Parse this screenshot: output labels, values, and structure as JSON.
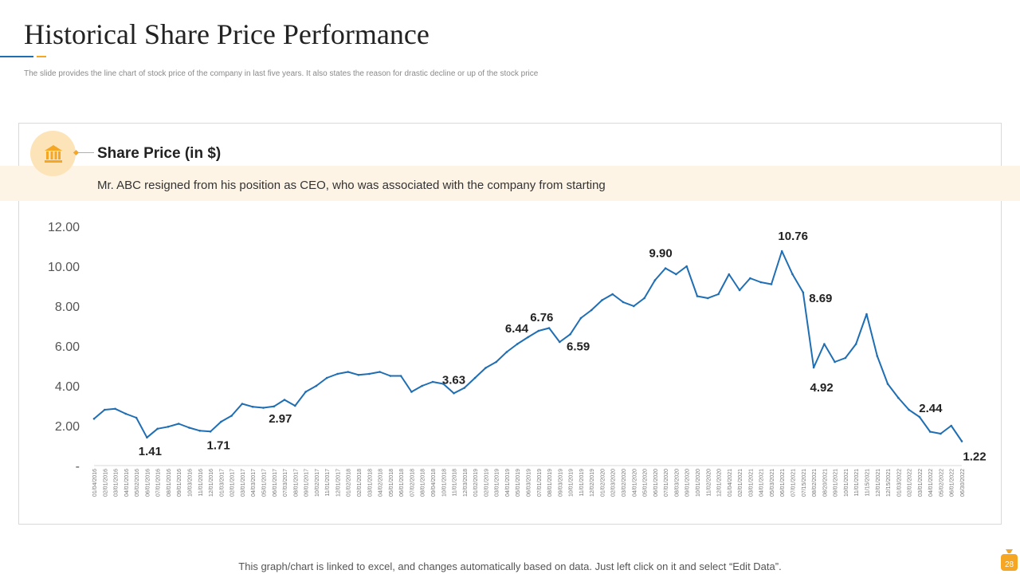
{
  "slide": {
    "title": "Historical Share Price Performance",
    "subtitle": "The slide provides the line chart of stock price of the company in last five years. It also states the reason for drastic decline or up of the stock price",
    "footer": "This graph/chart is linked to excel, and changes automatically based on data. Just left click on it and select “Edit Data”.",
    "page_number": "28",
    "accent_blue": "#1f6eb3",
    "accent_gold": "#f5a623"
  },
  "card": {
    "heading": "Share Price (in $)",
    "note": "Mr. ABC resigned from his position as CEO, who was associated with the company from starting",
    "icon": "bank-icon"
  },
  "chart_data": {
    "type": "line",
    "title": "",
    "xlabel": "",
    "ylabel": "",
    "ylim": [
      0,
      12
    ],
    "y_ticks": [
      {
        "value": 0,
        "label": "-"
      },
      {
        "value": 2,
        "label": "2.00"
      },
      {
        "value": 4,
        "label": "4.00"
      },
      {
        "value": 6,
        "label": "6.00"
      },
      {
        "value": 8,
        "label": "8.00"
      },
      {
        "value": 10,
        "label": "10.00"
      },
      {
        "value": 12,
        "label": "12.00"
      }
    ],
    "grid": false,
    "legend": "none",
    "line_color": "#1f6eb3",
    "series": [
      {
        "name": "",
        "points": [
          [
            "01/04/2016",
            2.35
          ],
          [
            "02/01/2016",
            2.8
          ],
          [
            "03/01/2016",
            2.85
          ],
          [
            "04/01/2016",
            2.6
          ],
          [
            "05/02/2016",
            2.4
          ],
          [
            "06/01/2016",
            1.41
          ],
          [
            "07/01/2016",
            1.85
          ],
          [
            "08/01/2016",
            1.95
          ],
          [
            "09/01/2016",
            2.1
          ],
          [
            "10/03/2016",
            1.9
          ],
          [
            "11/01/2016",
            1.75
          ],
          [
            "12/01/2016",
            1.71
          ],
          [
            "01/03/2017",
            2.2
          ],
          [
            "02/01/2017",
            2.5
          ],
          [
            "03/01/2017",
            3.1
          ],
          [
            "04/03/2017",
            2.95
          ],
          [
            "05/01/2017",
            2.9
          ],
          [
            "06/01/2017",
            2.97
          ],
          [
            "07/03/2017",
            3.3
          ],
          [
            "08/01/2017",
            3.0
          ],
          [
            "09/01/2017",
            3.7
          ],
          [
            "10/02/2017",
            4.0
          ],
          [
            "11/01/2017",
            4.4
          ],
          [
            "12/01/2017",
            4.6
          ],
          [
            "01/02/2018",
            4.7
          ],
          [
            "02/01/2018",
            4.55
          ],
          [
            "03/01/2018",
            4.6
          ],
          [
            "04/02/2018",
            4.7
          ],
          [
            "05/01/2018",
            4.5
          ],
          [
            "06/01/2018",
            4.5
          ],
          [
            "07/02/2018",
            3.7
          ],
          [
            "08/01/2018",
            4.0
          ],
          [
            "09/04/2018",
            4.2
          ],
          [
            "10/01/2018",
            4.1
          ],
          [
            "11/01/2018",
            3.63
          ],
          [
            "12/03/2018",
            3.9
          ],
          [
            "01/02/2019",
            4.4
          ],
          [
            "02/01/2019",
            4.9
          ],
          [
            "03/01/2019",
            5.2
          ],
          [
            "04/01/2019",
            5.7
          ],
          [
            "05/01/2019",
            6.1
          ],
          [
            "06/03/2019",
            6.44
          ],
          [
            "07/01/2019",
            6.76
          ],
          [
            "08/01/2019",
            6.9
          ],
          [
            "09/03/2019",
            6.2
          ],
          [
            "10/01/2019",
            6.59
          ],
          [
            "11/01/2019",
            7.4
          ],
          [
            "12/02/2019",
            7.8
          ],
          [
            "01/02/2020",
            8.3
          ],
          [
            "02/03/2020",
            8.6
          ],
          [
            "03/02/2020",
            8.2
          ],
          [
            "04/01/2020",
            8.0
          ],
          [
            "05/01/2020",
            8.4
          ],
          [
            "06/01/2020",
            9.3
          ],
          [
            "07/01/2020",
            9.9
          ],
          [
            "08/03/2020",
            9.6
          ],
          [
            "09/01/2020",
            10.0
          ],
          [
            "10/01/2020",
            8.5
          ],
          [
            "11/02/2020",
            8.4
          ],
          [
            "12/01/2020",
            8.6
          ],
          [
            "01/04/2021",
            9.6
          ],
          [
            "02/01/2021",
            8.8
          ],
          [
            "03/01/2021",
            9.4
          ],
          [
            "04/01/2021",
            9.2
          ],
          [
            "05/03/2021",
            9.1
          ],
          [
            "06/01/2021",
            10.76
          ],
          [
            "07/01/2021",
            9.6
          ],
          [
            "07/15/2021",
            8.69
          ],
          [
            "08/02/2021",
            4.92
          ],
          [
            "08/20/2021",
            6.1
          ],
          [
            "09/01/2021",
            5.2
          ],
          [
            "10/01/2021",
            5.4
          ],
          [
            "11/01/2021",
            6.1
          ],
          [
            "11/15/2021",
            7.6
          ],
          [
            "12/01/2021",
            5.5
          ],
          [
            "12/15/2021",
            4.1
          ],
          [
            "01/03/2022",
            3.4
          ],
          [
            "02/01/2022",
            2.8
          ],
          [
            "03/01/2022",
            2.44
          ],
          [
            "04/01/2022",
            1.7
          ],
          [
            "05/02/2022",
            1.6
          ],
          [
            "06/01/2022",
            2.0
          ],
          [
            "06/30/2022",
            1.22
          ]
        ]
      }
    ],
    "data_labels": [
      {
        "x": "06/01/2016",
        "value": "1.41"
      },
      {
        "x": "12/01/2016",
        "value": "1.71"
      },
      {
        "x": "06/01/2017",
        "value": "2.97"
      },
      {
        "x": "11/01/2018",
        "value": "3.63"
      },
      {
        "x": "06/03/2019",
        "value": "6.44"
      },
      {
        "x": "07/01/2019",
        "value": "6.76"
      },
      {
        "x": "10/01/2019",
        "value": "6.59"
      },
      {
        "x": "07/01/2020",
        "value": "9.90"
      },
      {
        "x": "06/01/2021",
        "value": "10.76"
      },
      {
        "x": "07/15/2021",
        "value": "8.69"
      },
      {
        "x": "08/02/2021",
        "value": "4.92"
      },
      {
        "x": "03/01/2022",
        "value": "2.44"
      },
      {
        "x": "06/30/2022",
        "value": "1.22"
      }
    ]
  }
}
